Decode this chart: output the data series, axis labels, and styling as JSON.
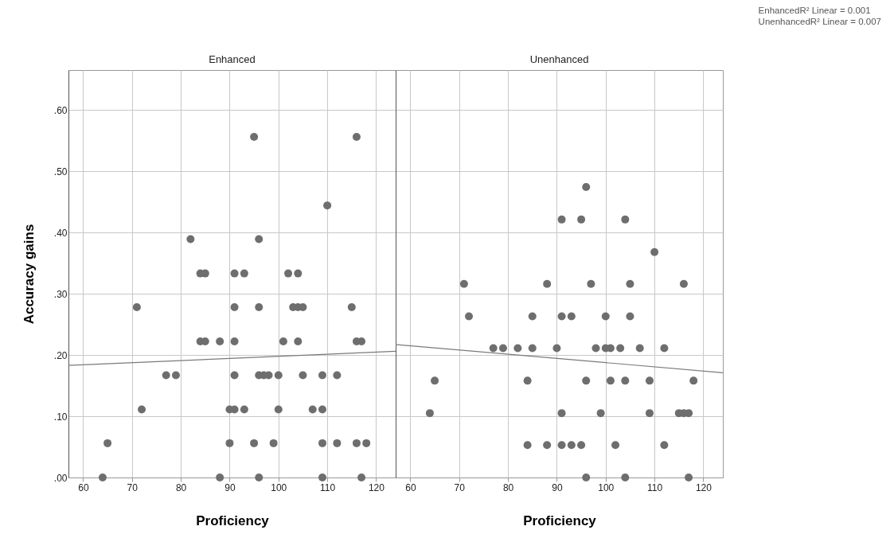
{
  "chart_data": [
    {
      "type": "scatter",
      "title": "Enhanced",
      "xlabel": "Proficiency",
      "ylabel": "Accuracy gains",
      "xlim": [
        57,
        124
      ],
      "xticks": [
        60,
        70,
        80,
        90,
        100,
        110,
        120
      ],
      "ylim": [
        0,
        0.665
      ],
      "yticks": [
        {
          "value": 0,
          "label": ".00"
        },
        {
          "value": 0.1,
          "label": ".10"
        },
        {
          "value": 0.2,
          "label": ".20"
        },
        {
          "value": 0.3,
          "label": ".30"
        },
        {
          "value": 0.4,
          "label": ".40"
        },
        {
          "value": 0.5,
          "label": ".50"
        },
        {
          "value": 0.6,
          "label": ".60"
        }
      ],
      "grid": true,
      "series": [
        {
          "marker": "circle",
          "color": "#6e6e6e",
          "x": [
            95,
            116,
            110,
            82,
            96,
            84,
            85,
            91,
            93,
            102,
            104,
            71,
            91,
            96,
            103,
            104,
            105,
            115,
            84,
            85,
            88,
            91,
            101,
            104,
            116,
            117,
            77,
            79,
            91,
            96,
            97,
            98,
            100,
            105,
            109,
            112,
            72,
            90,
            91,
            93,
            100,
            107,
            109,
            65,
            90,
            95,
            99,
            109,
            112,
            116,
            118,
            64,
            88,
            96,
            109,
            117
          ],
          "values": [
            0.556,
            0.556,
            0.444,
            0.389,
            0.389,
            0.333,
            0.333,
            0.333,
            0.333,
            0.333,
            0.333,
            0.278,
            0.278,
            0.278,
            0.278,
            0.278,
            0.278,
            0.278,
            0.222,
            0.222,
            0.222,
            0.222,
            0.222,
            0.222,
            0.222,
            0.222,
            0.167,
            0.167,
            0.167,
            0.167,
            0.167,
            0.167,
            0.167,
            0.167,
            0.167,
            0.167,
            0.111,
            0.111,
            0.111,
            0.111,
            0.111,
            0.111,
            0.111,
            0.056,
            0.056,
            0.056,
            0.056,
            0.056,
            0.056,
            0.056,
            0.056,
            0,
            0,
            0,
            0,
            0
          ]
        },
        {
          "type": "line",
          "color": "#7a7a7a",
          "x": [
            57,
            124
          ],
          "values": [
            0.183,
            0.206
          ]
        }
      ]
    },
    {
      "type": "scatter",
      "title": "Unenhanced",
      "xlabel": "Proficiency",
      "xlim": [
        57,
        124
      ],
      "xticks": [
        60,
        70,
        80,
        90,
        100,
        110,
        120
      ],
      "ylim": [
        0,
        0.665
      ],
      "yticks": [
        0,
        0.1,
        0.2,
        0.3,
        0.4,
        0.5,
        0.6
      ],
      "grid": true,
      "tick_labels": "x",
      "annotations": [
        "EnhancedR² Linear = 0.001",
        "UnenhancedR² Linear = 0.007"
      ],
      "series": [
        {
          "marker": "circle",
          "color": "#6e6e6e",
          "x": [
            96,
            91,
            95,
            104,
            110,
            71,
            88,
            97,
            105,
            116,
            72,
            85,
            91,
            93,
            100,
            105,
            77,
            79,
            82,
            85,
            90,
            98,
            100,
            101,
            103,
            107,
            112,
            65,
            84,
            96,
            101,
            104,
            109,
            118,
            64,
            91,
            99,
            109,
            115,
            116,
            117,
            84,
            88,
            91,
            93,
            95,
            102,
            112,
            96,
            104,
            117
          ],
          "values": [
            0.474,
            0.421,
            0.421,
            0.421,
            0.368,
            0.316,
            0.316,
            0.316,
            0.316,
            0.316,
            0.263,
            0.263,
            0.263,
            0.263,
            0.263,
            0.263,
            0.211,
            0.211,
            0.211,
            0.211,
            0.211,
            0.211,
            0.211,
            0.211,
            0.211,
            0.211,
            0.211,
            0.158,
            0.158,
            0.158,
            0.158,
            0.158,
            0.158,
            0.158,
            0.105,
            0.105,
            0.105,
            0.105,
            0.105,
            0.105,
            0.105,
            0.053,
            0.053,
            0.053,
            0.053,
            0.053,
            0.053,
            0.053,
            0,
            0,
            0
          ]
        },
        {
          "type": "line",
          "color": "#7a7a7a",
          "x": [
            57,
            124
          ],
          "values": [
            0.217,
            0.171
          ]
        }
      ]
    }
  ]
}
